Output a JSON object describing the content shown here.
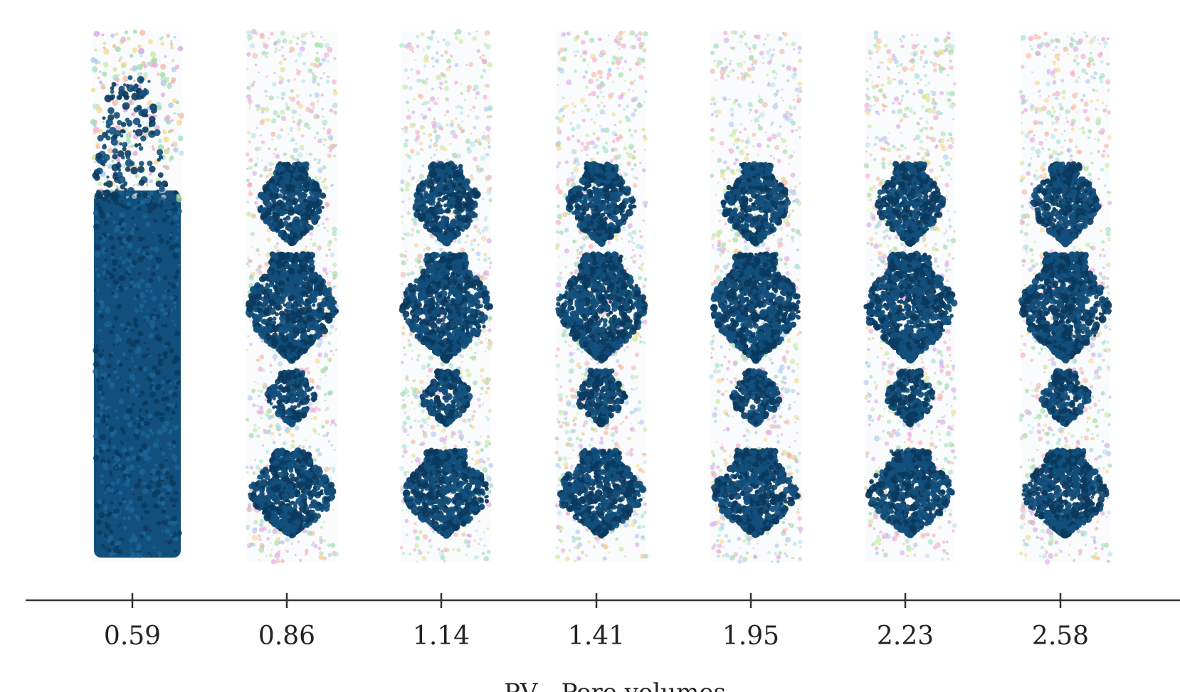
{
  "figure": {
    "axis_title": "PV - Pore volumes",
    "columns": [
      {
        "pv": "0.59",
        "dense": true
      },
      {
        "pv": "0.86",
        "dense": false
      },
      {
        "pv": "1.14",
        "dense": false
      },
      {
        "pv": "1.41",
        "dense": false
      },
      {
        "pv": "1.95",
        "dense": false
      },
      {
        "pv": "2.23",
        "dense": false
      },
      {
        "pv": "2.58",
        "dense": false
      }
    ],
    "colors": {
      "cluster": "#124f7c",
      "cluster_dark": "#0b3a5e",
      "scatter": [
        "#9ad9a0",
        "#f3a6c8",
        "#a9c6f2",
        "#f5d88a",
        "#b8e4e8",
        "#d9a3e8",
        "#9fe0c4",
        "#f2b8a0",
        "#c6e89a"
      ]
    }
  }
}
